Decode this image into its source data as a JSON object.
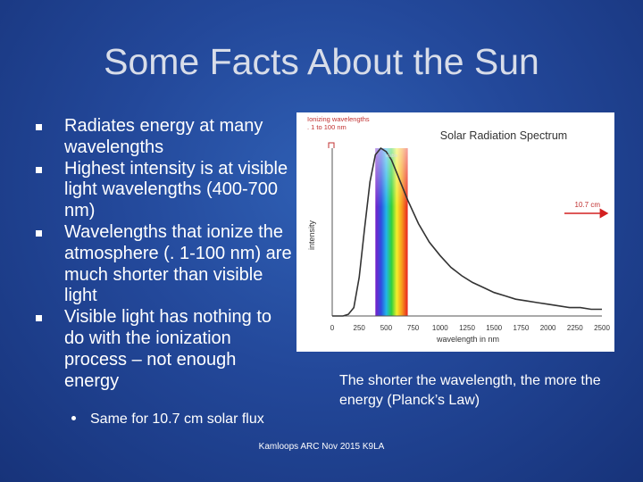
{
  "slide": {
    "title": "Some Facts About the Sun",
    "bullets": [
      "Radiates energy at many wavelengths",
      "Highest intensity is at visible light wavelengths (400-700 nm)",
      "Wavelengths that ionize the atmosphere (. 1-100 nm) are much shorter than visible light",
      "Visible light has nothing to do with the ionization process – not enough energy"
    ],
    "sub_bullet": "Same for 10.7 cm solar flux",
    "caption": "The shorter the wavelength, the more the energy (Planck’s Law)",
    "footer": "Kamloops ARC Nov 2015 K9LA"
  },
  "chart_data": {
    "type": "line",
    "title": "Solar Radiation Spectrum",
    "xlabel": "wavelength in nm",
    "ylabel": "intensity",
    "xticks": [
      "0",
      "250",
      "500",
      "750",
      "1000",
      "1250",
      "1500",
      "1750",
      "2000",
      "2250",
      "2500"
    ],
    "xlim": [
      0,
      2500
    ],
    "ylim": [
      0,
      1
    ],
    "visible_band": [
      400,
      700
    ],
    "visible_label": "visible",
    "ionizing_label": "Ionizing wavelengths . 1 to 100 nm",
    "radio_label": "10.7 cm",
    "series": [
      {
        "x": [
          0,
          100,
          150,
          200,
          250,
          300,
          350,
          400,
          450,
          500,
          550,
          600,
          650,
          700,
          800,
          900,
          1000,
          1100,
          1200,
          1300,
          1400,
          1500,
          1600,
          1700,
          1800,
          1900,
          2000,
          2100,
          2200,
          2300,
          2400,
          2500
        ],
        "values": [
          0,
          0,
          0.01,
          0.05,
          0.23,
          0.52,
          0.8,
          0.96,
          1.0,
          0.98,
          0.93,
          0.85,
          0.77,
          0.69,
          0.55,
          0.44,
          0.36,
          0.29,
          0.24,
          0.2,
          0.17,
          0.14,
          0.12,
          0.1,
          0.09,
          0.08,
          0.07,
          0.06,
          0.05,
          0.05,
          0.04,
          0.04
        ]
      }
    ],
    "colors": {
      "curve": "#333333",
      "arrow": "#d32020",
      "visible_label": "#dcdcdc"
    }
  }
}
